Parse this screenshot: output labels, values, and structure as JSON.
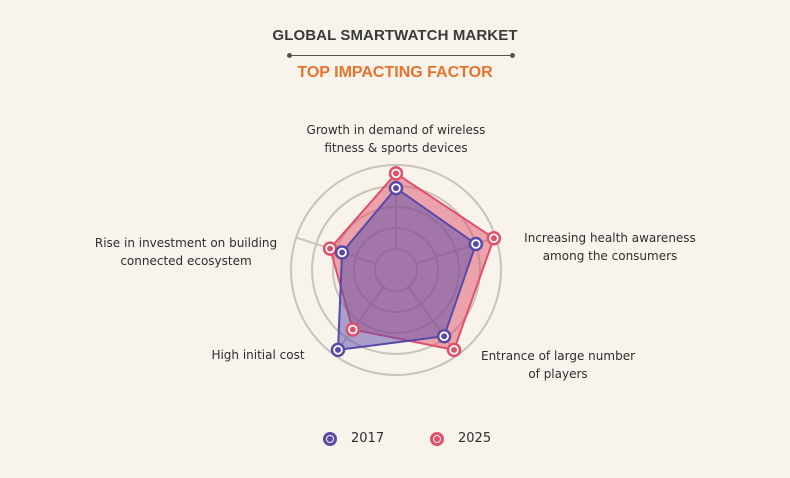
{
  "header": {
    "title": "GLOBAL SMARTWATCH MARKET",
    "subtitle": "TOP IMPACTING FACTOR"
  },
  "colors": {
    "background": "#f8f4ec",
    "title": "#3a3a3a",
    "subtitle": "#e8732c",
    "series_2017": "#5a4aa8",
    "series_2025": "#e0506a",
    "grid": "#c8c4bc"
  },
  "chart_data": {
    "type": "radar",
    "title": "GLOBAL SMARTWATCH MARKET",
    "subtitle": "TOP IMPACTING FACTOR",
    "categories": [
      "Growth in demand of wireless fitness & sports devices",
      "Increasing health awareness among the consumers",
      "Entrance of large number of players",
      "High initial cost",
      "Rise in investment on building connected ecosystem"
    ],
    "series": [
      {
        "name": "2017",
        "values": [
          3.9,
          4.0,
          3.9,
          4.7,
          2.7
        ]
      },
      {
        "name": "2025",
        "values": [
          4.6,
          4.9,
          4.7,
          3.5,
          3.3
        ]
      }
    ],
    "scale": [
      0,
      5
    ],
    "rings": 5,
    "grid": true,
    "legend_position": "bottom"
  },
  "axis_labels": [
    {
      "line1": "Growth in demand of wireless",
      "line2": "fitness & sports devices"
    },
    {
      "line1": "Increasing health awareness",
      "line2": "among the consumers"
    },
    {
      "line1": "Entrance of large number",
      "line2": "of players"
    },
    {
      "line1": "High initial cost",
      "line2": ""
    },
    {
      "line1": "Rise in investment on building",
      "line2": "connected ecosystem"
    }
  ],
  "legend": [
    {
      "label": "2017"
    },
    {
      "label": "2025"
    }
  ]
}
